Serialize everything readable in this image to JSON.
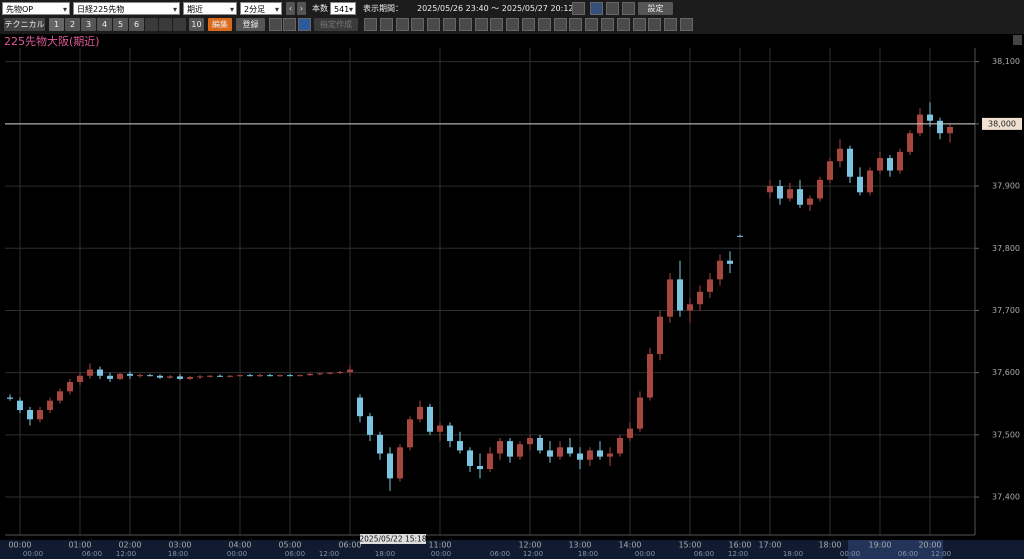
{
  "toolbar": {
    "market": "先物OP",
    "symbol": "日経225先物",
    "contract": "期近",
    "interval": "2分足",
    "count_label": "本数",
    "count": 541,
    "period_label": "表示期間：",
    "period": "2025/05/26 23:40 ～ 2025/05/27 20:12",
    "settings": "設定",
    "technical": "テクニカル",
    "tabs": [
      "1",
      "2",
      "3",
      "4",
      "5",
      "6",
      "10"
    ],
    "edit": "編集",
    "register": "登録",
    "create": "指定作成"
  },
  "chart_data": {
    "type": "candlestick",
    "title": "225先物大阪(期近)",
    "categories": [
      null,
      "00:00",
      null,
      null,
      null,
      null,
      null,
      "01:00",
      null,
      null,
      null,
      null,
      "02:00",
      null,
      null,
      null,
      null,
      "03:00",
      null,
      null,
      null,
      null,
      null,
      "04:00",
      null,
      null,
      null,
      null,
      "05:00",
      null,
      null,
      null,
      null,
      null,
      "06:00",
      null,
      null,
      null,
      null,
      null,
      null,
      null,
      null,
      "11:00",
      null,
      null,
      null,
      null,
      null,
      null,
      null,
      null,
      "12:00",
      null,
      null,
      null,
      null,
      "13:00",
      null,
      null,
      null,
      null,
      "14:00",
      null,
      null,
      null,
      null,
      null,
      "15:00",
      null,
      null,
      null,
      null,
      "16:00",
      null,
      null,
      "17:00",
      null,
      null,
      null,
      null,
      null,
      "18:00",
      null,
      null,
      null,
      null,
      "19:00",
      null,
      null,
      null,
      null,
      "20:00",
      null,
      null,
      null,
      null
    ],
    "open": [
      37560,
      37555,
      37540,
      37525,
      37540,
      37555,
      37570,
      37585,
      37595,
      37605,
      37595,
      37590,
      37598,
      37595,
      37596,
      37595,
      37592,
      37594,
      37590,
      37593,
      37594,
      37595,
      37594,
      37595,
      37596,
      37595,
      37596,
      37595,
      37596,
      37595,
      37596,
      37598,
      37599,
      37600,
      37601,
      37560,
      37530,
      37500,
      37470,
      37430,
      37480,
      37525,
      37545,
      37505,
      37515,
      37490,
      37475,
      37450,
      37445,
      37470,
      37490,
      37465,
      37485,
      37495,
      37475,
      37465,
      37480,
      37470,
      37460,
      37475,
      37465,
      37470,
      37495,
      37510,
      37560,
      37630,
      37690,
      37750,
      37700,
      37710,
      37730,
      37750,
      37780,
      37820,
      null,
      null,
      37890,
      37900,
      37880,
      37895,
      37870,
      37880,
      37910,
      37940,
      37960,
      37915,
      37890,
      37925,
      37945,
      37925,
      37955,
      37985,
      38015,
      38005,
      37985,
      null,
      null
    ],
    "high": [
      37565,
      37560,
      37545,
      37545,
      37560,
      37575,
      37590,
      37600,
      37615,
      37610,
      37600,
      37600,
      37602,
      37598,
      37598,
      37597,
      37596,
      37598,
      37595,
      37596,
      37596,
      37597,
      37596,
      37597,
      37598,
      37598,
      37598,
      37597,
      37598,
      37597,
      37600,
      37600,
      37601,
      37603,
      37612,
      37565,
      37535,
      37505,
      37480,
      37485,
      37530,
      37555,
      37550,
      37520,
      37520,
      37505,
      37480,
      37470,
      37480,
      37495,
      37495,
      37490,
      37500,
      37500,
      37490,
      37490,
      37495,
      37480,
      37480,
      37490,
      37480,
      37500,
      37520,
      37570,
      37640,
      37700,
      37760,
      37780,
      37720,
      37740,
      37760,
      37790,
      37795,
      37822,
      null,
      null,
      37910,
      37910,
      37905,
      37910,
      37885,
      37915,
      37945,
      37975,
      37965,
      37930,
      37930,
      37955,
      37950,
      37960,
      37990,
      38025,
      38035,
      38010,
      38000,
      null,
      null
    ],
    "low": [
      37555,
      37535,
      37515,
      37520,
      37535,
      37550,
      37565,
      37580,
      37590,
      37590,
      37585,
      37588,
      37590,
      37592,
      37594,
      37590,
      37590,
      37588,
      37588,
      37590,
      37592,
      37593,
      37592,
      37593,
      37594,
      37593,
      37594,
      37593,
      37594,
      37594,
      37595,
      37596,
      37597,
      37598,
      37595,
      37520,
      37490,
      37460,
      37410,
      37425,
      37475,
      37520,
      37500,
      37490,
      37480,
      37470,
      37440,
      37430,
      37440,
      37460,
      37455,
      37460,
      37475,
      37470,
      37455,
      37460,
      37465,
      37445,
      37450,
      37460,
      37450,
      37465,
      37490,
      37505,
      37555,
      37620,
      37680,
      37690,
      37680,
      37700,
      37720,
      37740,
      37760,
      37818,
      null,
      null,
      37880,
      37870,
      37875,
      37865,
      37860,
      37875,
      37905,
      37930,
      37905,
      37885,
      37885,
      37920,
      37915,
      37920,
      37950,
      37980,
      37995,
      37975,
      37970,
      null,
      null
    ],
    "close": [
      37558,
      37540,
      37525,
      37540,
      37555,
      37570,
      37585,
      37595,
      37605,
      37595,
      37590,
      37598,
      37595,
      37596,
      37595,
      37592,
      37594,
      37590,
      37593,
      37594,
      37595,
      37594,
      37595,
      37596,
      37595,
      37596,
      37595,
      37596,
      37595,
      37596,
      37598,
      37599,
      37600,
      37601,
      37605,
      37530,
      37500,
      37470,
      37430,
      37480,
      37525,
      37545,
      37505,
      37515,
      37490,
      37475,
      37450,
      37445,
      37470,
      37490,
      37465,
      37485,
      37495,
      37475,
      37465,
      37480,
      37470,
      37460,
      37475,
      37465,
      37470,
      37495,
      37510,
      37560,
      37630,
      37690,
      37750,
      37700,
      37710,
      37730,
      37750,
      37780,
      37775,
      37820,
      null,
      null,
      37900,
      37880,
      37895,
      37870,
      37880,
      37910,
      37940,
      37960,
      37915,
      37890,
      37925,
      37945,
      37925,
      37955,
      37985,
      38015,
      38005,
      37985,
      37995,
      null,
      null
    ],
    "up_color": "#a8473f",
    "down_color": "#7cc6e4",
    "ylim": [
      37339,
      38122
    ],
    "yticks": [
      {
        "value": 37400,
        "label": "37,400"
      },
      {
        "value": 37500,
        "label": "37,500"
      },
      {
        "value": 37600,
        "label": "37,600"
      },
      {
        "value": 37700,
        "label": "37,700"
      },
      {
        "value": 37800,
        "label": "37,800"
      },
      {
        "value": 37900,
        "label": "37,900"
      },
      {
        "value": 38000,
        "label": "38,000"
      },
      {
        "value": 38100,
        "label": "38,100"
      }
    ],
    "grid": true,
    "crosshair": {
      "value": 38000,
      "label": "38,000"
    },
    "cursor_label": "2025/05/22 15:18",
    "navigator_labels": [
      "00:00",
      "06:00",
      "12:00",
      "18:00",
      "00:00",
      "06:00",
      "12:00",
      "18:00",
      "00:00",
      "06:00",
      "12:00",
      "18:00",
      "00:00",
      "06:00",
      "12:00",
      "18:00",
      "00:00",
      "06:00",
      "12:00"
    ]
  }
}
